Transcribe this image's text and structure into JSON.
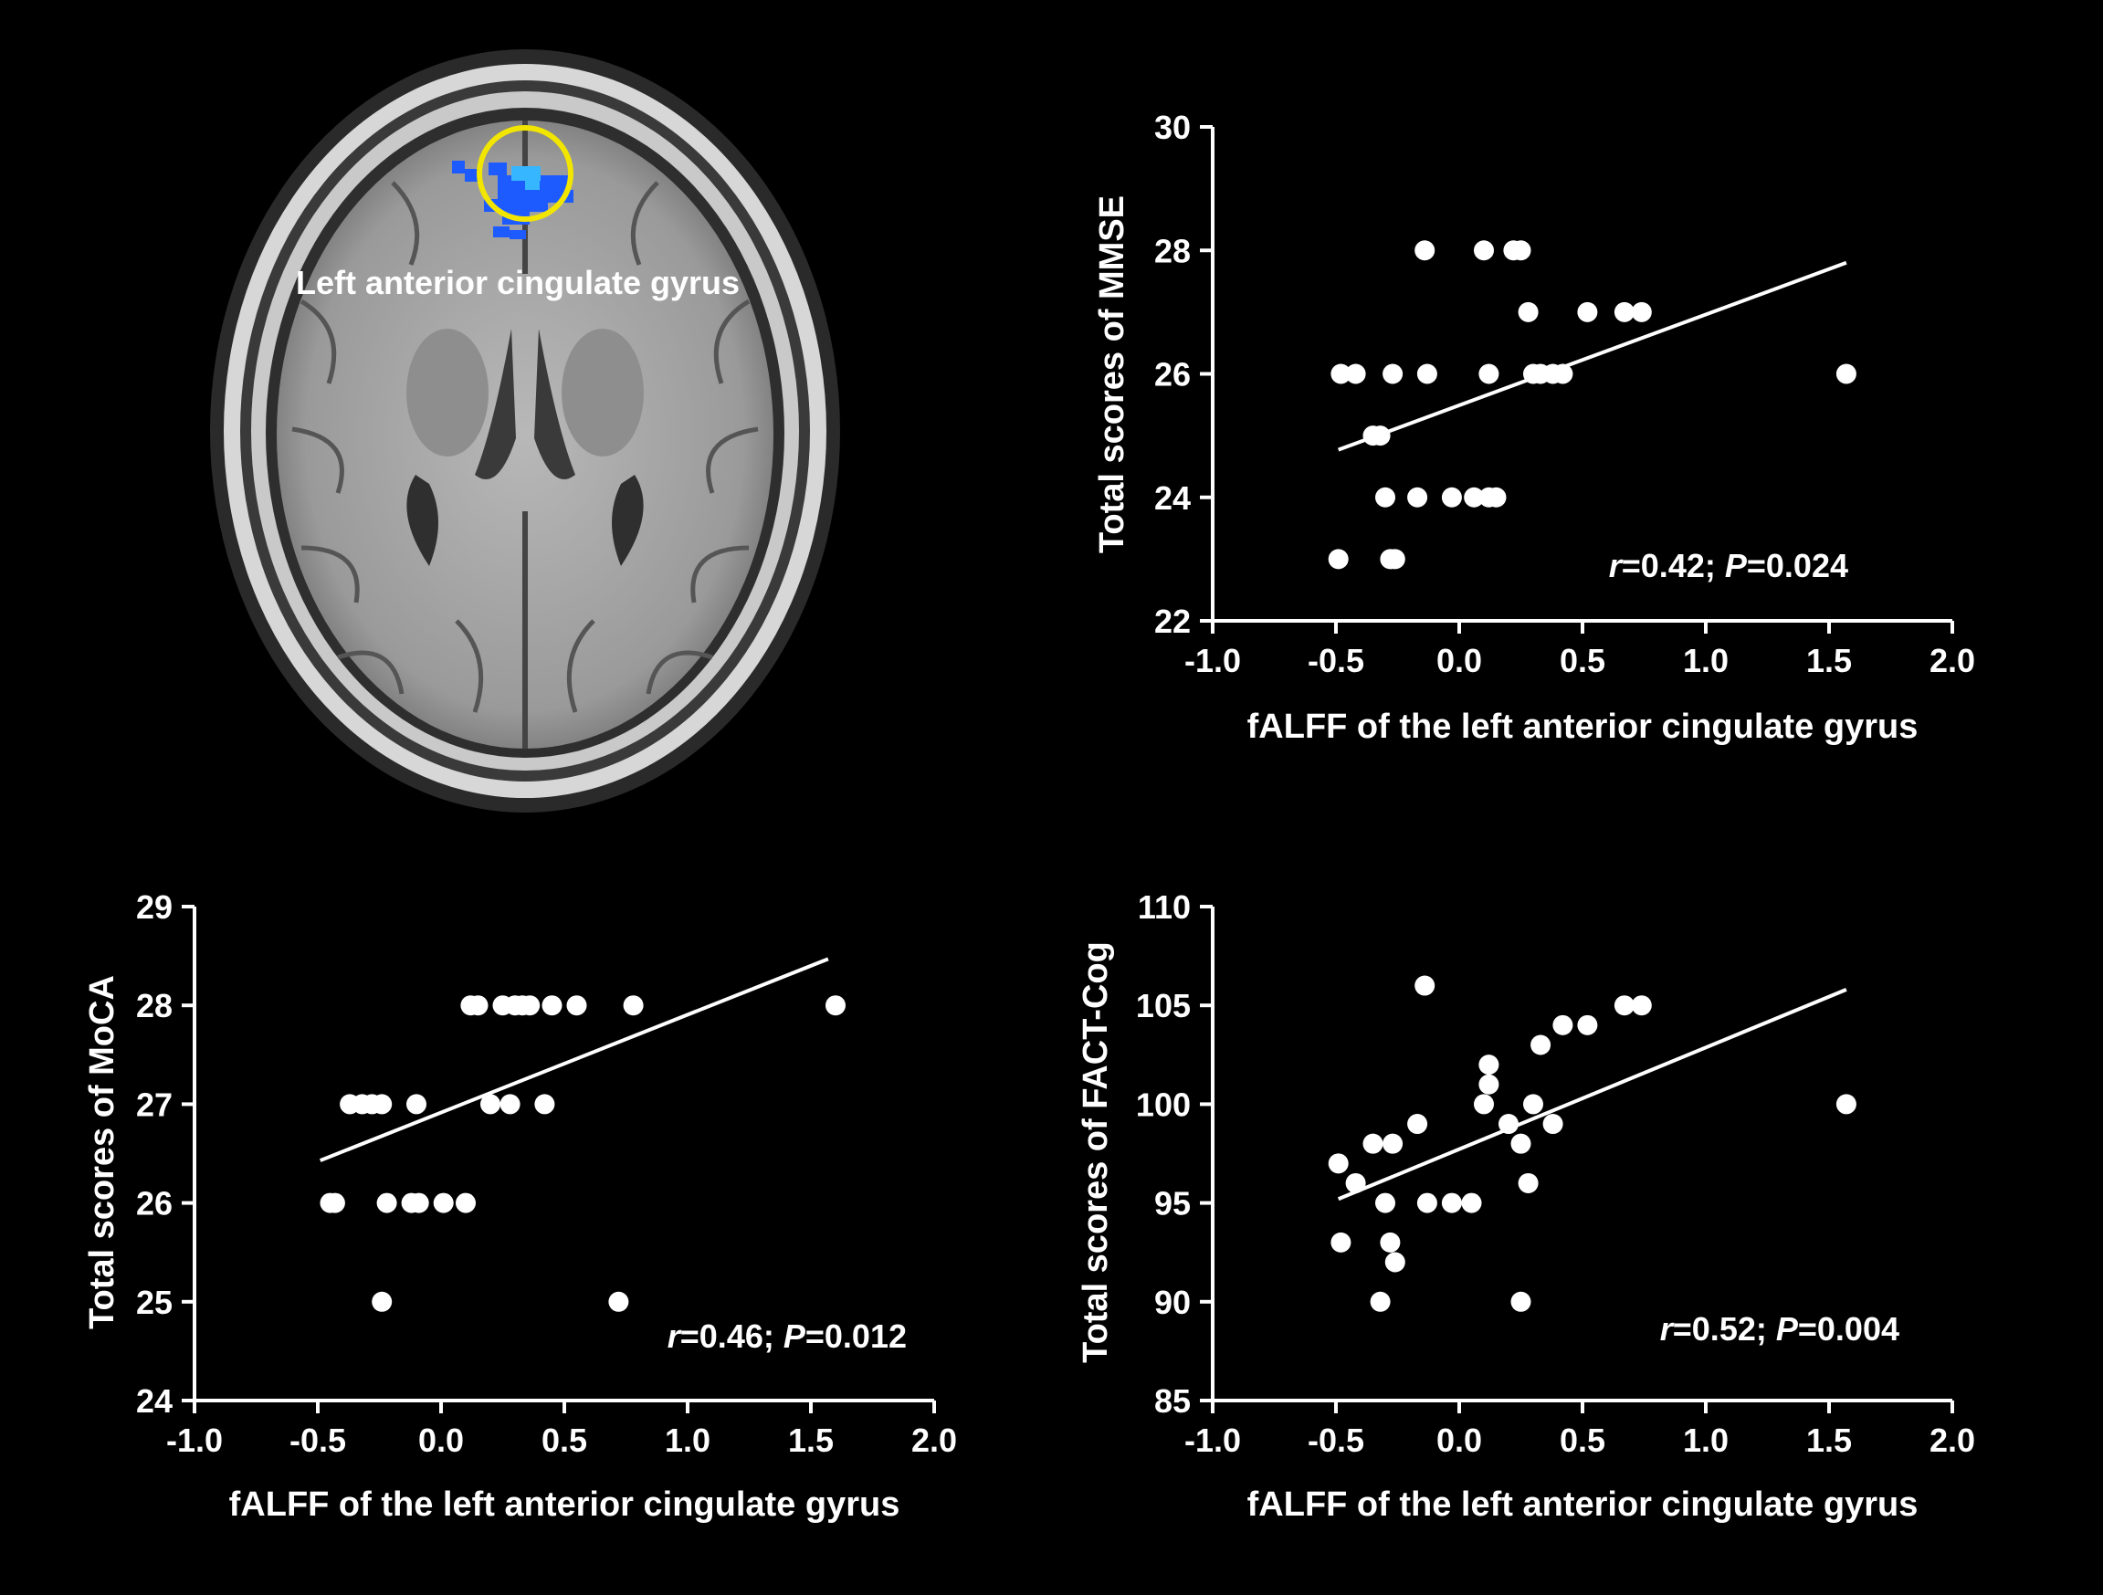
{
  "brain_image": {
    "label": "Left anterior cingulate gyrus",
    "highlight_color": "#f2e600",
    "cluster_color": "#1e5bff"
  },
  "chart_data": [
    {
      "id": "mmse",
      "type": "scatter",
      "xlabel": "fALFF of the left anterior cingulate gyrus",
      "ylabel": "Total scores of MMSE",
      "xlim": [
        -1.0,
        2.0
      ],
      "ylim": [
        22,
        30
      ],
      "xticks": [
        -1.0,
        -0.5,
        0.0,
        0.5,
        1.0,
        1.5,
        2.0
      ],
      "xtick_labels": [
        "-1.0",
        "-0.5",
        "0.0",
        "0.5",
        "1.0",
        "1.5",
        "2.0"
      ],
      "yticks": [
        22,
        24,
        26,
        28,
        30
      ],
      "ytick_labels": [
        "22",
        "24",
        "26",
        "28",
        "30"
      ],
      "stats": {
        "r_label": "r",
        "r_text": "=0.42; ",
        "p_label": "P",
        "p_text": "=0.024"
      },
      "fit": {
        "x": [
          -0.49,
          1.57
        ],
        "y": [
          24.77,
          27.8
        ]
      },
      "points": [
        {
          "x": -0.14,
          "y": 28
        },
        {
          "x": 0.1,
          "y": 28
        },
        {
          "x": 0.22,
          "y": 28
        },
        {
          "x": 0.25,
          "y": 28
        },
        {
          "x": 0.28,
          "y": 27
        },
        {
          "x": 0.52,
          "y": 27
        },
        {
          "x": 0.67,
          "y": 27
        },
        {
          "x": 0.74,
          "y": 27
        },
        {
          "x": -0.48,
          "y": 26
        },
        {
          "x": -0.42,
          "y": 26
        },
        {
          "x": -0.27,
          "y": 26
        },
        {
          "x": -0.13,
          "y": 26
        },
        {
          "x": 0.12,
          "y": 26
        },
        {
          "x": 0.3,
          "y": 26
        },
        {
          "x": 0.33,
          "y": 26
        },
        {
          "x": 0.38,
          "y": 26
        },
        {
          "x": 0.42,
          "y": 26
        },
        {
          "x": 1.57,
          "y": 26
        },
        {
          "x": -0.35,
          "y": 25
        },
        {
          "x": -0.32,
          "y": 25
        },
        {
          "x": -0.3,
          "y": 24
        },
        {
          "x": -0.17,
          "y": 24
        },
        {
          "x": -0.03,
          "y": 24
        },
        {
          "x": 0.06,
          "y": 24
        },
        {
          "x": 0.12,
          "y": 24
        },
        {
          "x": 0.15,
          "y": 24
        },
        {
          "x": -0.49,
          "y": 23
        },
        {
          "x": -0.28,
          "y": 23
        },
        {
          "x": -0.26,
          "y": 23
        }
      ]
    },
    {
      "id": "moca",
      "type": "scatter",
      "xlabel": "fALFF of the left anterior cingulate gyrus",
      "ylabel": "Total scores of MoCA",
      "xlim": [
        -1.0,
        2.0
      ],
      "ylim": [
        24,
        29
      ],
      "xticks": [
        -1.0,
        -0.5,
        0.0,
        0.5,
        1.0,
        1.5,
        2.0
      ],
      "xtick_labels": [
        "-1.0",
        "-0.5",
        "0.0",
        "0.5",
        "1.0",
        "1.5",
        "2.0"
      ],
      "yticks": [
        24,
        25,
        26,
        27,
        28,
        29
      ],
      "ytick_labels": [
        "24",
        "25",
        "26",
        "27",
        "28",
        "29"
      ],
      "stats": {
        "r_label": "r",
        "r_text": "=0.46; ",
        "p_label": "P",
        "p_text": "=0.012"
      },
      "fit": {
        "x": [
          -0.49,
          1.57
        ],
        "y": [
          26.43,
          28.47
        ]
      },
      "points": [
        {
          "x": 0.12,
          "y": 28
        },
        {
          "x": 0.15,
          "y": 28
        },
        {
          "x": 0.25,
          "y": 28
        },
        {
          "x": 0.3,
          "y": 28
        },
        {
          "x": 0.33,
          "y": 28
        },
        {
          "x": 0.36,
          "y": 28
        },
        {
          "x": 0.45,
          "y": 28
        },
        {
          "x": 0.55,
          "y": 28
        },
        {
          "x": 0.78,
          "y": 28
        },
        {
          "x": 1.6,
          "y": 28
        },
        {
          "x": -0.37,
          "y": 27
        },
        {
          "x": -0.32,
          "y": 27
        },
        {
          "x": -0.28,
          "y": 27
        },
        {
          "x": -0.24,
          "y": 27
        },
        {
          "x": -0.1,
          "y": 27
        },
        {
          "x": 0.2,
          "y": 27
        },
        {
          "x": 0.28,
          "y": 27
        },
        {
          "x": 0.42,
          "y": 27
        },
        {
          "x": -0.45,
          "y": 26
        },
        {
          "x": -0.43,
          "y": 26
        },
        {
          "x": -0.22,
          "y": 26
        },
        {
          "x": -0.12,
          "y": 26
        },
        {
          "x": -0.09,
          "y": 26
        },
        {
          "x": 0.01,
          "y": 26
        },
        {
          "x": 0.1,
          "y": 26
        },
        {
          "x": -0.24,
          "y": 25
        },
        {
          "x": 0.72,
          "y": 25
        }
      ]
    },
    {
      "id": "factcog",
      "type": "scatter",
      "xlabel": "fALFF of the left anterior cingulate gyrus",
      "ylabel": "Total scores of FACT-Cog",
      "xlim": [
        -1.0,
        2.0
      ],
      "ylim": [
        85,
        110
      ],
      "xticks": [
        -1.0,
        -0.5,
        0.0,
        0.5,
        1.0,
        1.5,
        2.0
      ],
      "xtick_labels": [
        "-1.0",
        "-0.5",
        "0.0",
        "0.5",
        "1.0",
        "1.5",
        "2.0"
      ],
      "yticks": [
        85,
        90,
        95,
        100,
        105,
        110
      ],
      "ytick_labels": [
        "85",
        "90",
        "95",
        "100",
        "105",
        "110"
      ],
      "stats": {
        "r_label": "r",
        "r_text": "=0.52; ",
        "p_label": "P",
        "p_text": "=0.004"
      },
      "fit": {
        "x": [
          -0.49,
          1.57
        ],
        "y": [
          95.2,
          105.8
        ]
      },
      "points": [
        {
          "x": -0.14,
          "y": 106
        },
        {
          "x": 0.67,
          "y": 105
        },
        {
          "x": 0.74,
          "y": 105
        },
        {
          "x": 0.42,
          "y": 104
        },
        {
          "x": 0.52,
          "y": 104
        },
        {
          "x": 0.33,
          "y": 103
        },
        {
          "x": 0.12,
          "y": 102
        },
        {
          "x": 0.12,
          "y": 101
        },
        {
          "x": 0.1,
          "y": 100
        },
        {
          "x": 0.3,
          "y": 100
        },
        {
          "x": 1.57,
          "y": 100
        },
        {
          "x": -0.17,
          "y": 99
        },
        {
          "x": 0.2,
          "y": 99
        },
        {
          "x": 0.38,
          "y": 99
        },
        {
          "x": -0.35,
          "y": 98
        },
        {
          "x": -0.27,
          "y": 98
        },
        {
          "x": 0.25,
          "y": 98
        },
        {
          "x": -0.49,
          "y": 97
        },
        {
          "x": -0.42,
          "y": 96
        },
        {
          "x": 0.28,
          "y": 96
        },
        {
          "x": -0.3,
          "y": 95
        },
        {
          "x": -0.13,
          "y": 95
        },
        {
          "x": -0.03,
          "y": 95
        },
        {
          "x": 0.05,
          "y": 95
        },
        {
          "x": -0.48,
          "y": 93
        },
        {
          "x": -0.28,
          "y": 93
        },
        {
          "x": -0.26,
          "y": 92
        },
        {
          "x": -0.32,
          "y": 90
        },
        {
          "x": 0.25,
          "y": 90
        }
      ]
    }
  ]
}
